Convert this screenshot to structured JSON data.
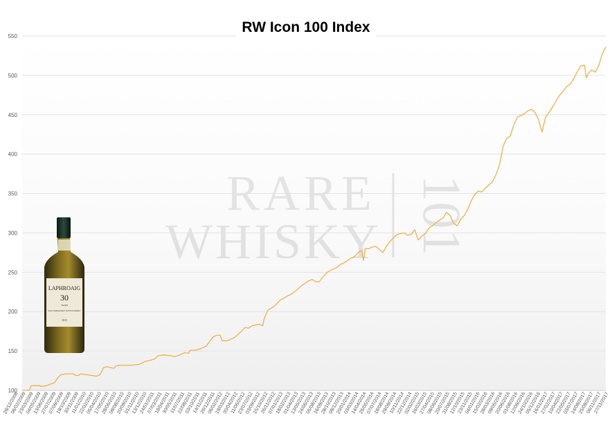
{
  "chart_data": {
    "type": "line",
    "title": "RW Icon 100 Index",
    "xlabel": "",
    "ylabel": "",
    "ylim": [
      100,
      550
    ],
    "yticks": [
      100,
      150,
      200,
      250,
      300,
      350,
      400,
      450,
      500,
      550
    ],
    "grid": true,
    "series_color": "#f0b04a",
    "x_tick_labels": [
      "29/12/2008",
      "06/02/2009",
      "23/03/2009",
      "04/05/2009",
      "13/06/2009",
      "27/07/2009",
      "07/09/2009",
      "19/10/2009",
      "30/11/2009",
      "11/01/2010",
      "22/02/2010",
      "05/04/2010",
      "17/05/2010",
      "28/06/2010",
      "09/08/2010",
      "20/09/2010",
      "01/11/2010",
      "13/12/2010",
      "24/01/2011",
      "07/03/2011",
      "18/04/2011",
      "30/05/2011",
      "11/07/2011",
      "22/08/2011",
      "03/10/2011",
      "14/11/2011",
      "26/12/2011",
      "06/02/2012",
      "19/03/2012",
      "30/04/2012",
      "11/06/2012",
      "23/07/2012",
      "03/09/2012",
      "15/10/2012",
      "26/11/2012",
      "07/01/2013",
      "18/02/2013",
      "01/04/2013",
      "13/05/2013",
      "24/06/2013",
      "05/08/2013",
      "16/09/2013",
      "28/10/2013",
      "09/12/2013",
      "20/01/2014",
      "03/03/2014",
      "14/04/2014",
      "26/05/2014",
      "07/07/2014",
      "18/08/2014",
      "29/09/2014",
      "10/11/2014",
      "22/12/2014",
      "02/02/2015",
      "16/03/2015",
      "27/04/2015",
      "08/06/2015",
      "20/07/2015",
      "31/08/2015",
      "12/10/2015",
      "23/11/2015",
      "04/01/2016",
      "15/02/2016",
      "28/03/2016",
      "09/05/2016",
      "20/06/2016",
      "01/08/2016",
      "12/09/2016",
      "24/10/2016",
      "05/12/2016",
      "16/01/2017",
      "27/02/2017",
      "10/04/2017",
      "22/05/2017",
      "03/07/2017",
      "14/08/2017",
      "25/09/2017",
      "06/11/2017",
      "27/11/2017"
    ],
    "series": [
      {
        "values": [
          [
            0,
            100
          ],
          [
            2,
            100
          ],
          [
            2.6,
            106
          ],
          [
            5,
            106
          ],
          [
            5.4,
            105
          ],
          [
            7,
            106
          ],
          [
            8,
            108
          ],
          [
            9.2,
            110
          ],
          [
            10.2,
            117
          ],
          [
            11,
            120
          ],
          [
            12.5,
            121
          ],
          [
            14.5,
            121
          ],
          [
            15,
            119
          ],
          [
            16,
            119
          ],
          [
            16.5,
            121
          ],
          [
            18,
            120
          ],
          [
            19.5,
            119
          ],
          [
            21,
            118
          ],
          [
            22,
            120
          ],
          [
            22.5,
            124
          ],
          [
            23,
            129
          ],
          [
            24,
            130
          ],
          [
            25,
            129
          ],
          [
            26,
            128
          ],
          [
            26.5,
            131
          ],
          [
            27.5,
            132
          ],
          [
            29,
            132
          ],
          [
            31,
            132
          ],
          [
            33,
            133
          ],
          [
            34,
            135
          ],
          [
            35,
            137
          ],
          [
            36,
            138
          ],
          [
            37.5,
            140
          ],
          [
            38.5,
            144
          ],
          [
            40,
            145
          ],
          [
            42,
            144
          ],
          [
            43,
            143
          ],
          [
            44,
            144
          ],
          [
            45,
            146
          ],
          [
            46,
            148
          ],
          [
            47,
            147
          ],
          [
            47.5,
            151
          ],
          [
            49,
            151
          ],
          [
            50.5,
            153
          ],
          [
            52,
            156
          ],
          [
            53,
            162
          ],
          [
            54,
            168
          ],
          [
            55,
            170
          ],
          [
            56,
            170
          ],
          [
            56.5,
            163
          ],
          [
            58,
            163
          ],
          [
            59,
            165
          ],
          [
            60,
            167
          ],
          [
            61,
            171
          ],
          [
            62,
            175
          ],
          [
            63,
            180
          ],
          [
            64,
            179
          ],
          [
            65,
            182
          ],
          [
            66,
            183
          ],
          [
            67,
            184
          ],
          [
            68,
            182
          ],
          [
            68.5,
            192
          ],
          [
            69.5,
            202
          ],
          [
            71,
            206
          ],
          [
            72,
            210
          ],
          [
            73,
            215
          ],
          [
            74,
            217
          ],
          [
            75,
            220
          ],
          [
            76,
            222
          ],
          [
            77,
            225
          ],
          [
            78,
            229
          ],
          [
            79,
            233
          ],
          [
            80,
            236
          ],
          [
            81,
            239
          ],
          [
            82,
            241
          ],
          [
            83,
            238
          ],
          [
            84,
            238
          ],
          [
            85,
            244
          ],
          [
            86,
            249
          ],
          [
            87,
            252
          ],
          [
            88,
            254
          ],
          [
            89,
            256
          ],
          [
            90,
            260
          ],
          [
            91,
            262
          ],
          [
            92,
            265
          ],
          [
            93,
            268
          ],
          [
            94,
            270
          ],
          [
            95,
            275
          ],
          [
            96,
            278
          ],
          [
            96.5,
            265
          ],
          [
            97,
            280
          ],
          [
            98,
            280
          ],
          [
            99,
            282
          ],
          [
            100,
            283
          ],
          [
            101,
            279
          ],
          [
            102,
            275
          ],
          [
            103,
            283
          ],
          [
            104,
            289
          ],
          [
            105,
            294
          ],
          [
            106,
            298
          ],
          [
            107,
            299
          ],
          [
            108,
            300
          ],
          [
            109,
            297
          ],
          [
            110,
            298
          ],
          [
            111,
            304
          ],
          [
            112,
            291
          ],
          [
            113,
            296
          ],
          [
            114,
            299
          ],
          [
            115,
            306
          ],
          [
            116,
            309
          ],
          [
            117,
            313
          ],
          [
            118,
            316
          ],
          [
            119,
            319
          ],
          [
            120,
            326
          ],
          [
            121,
            322
          ],
          [
            122,
            312
          ],
          [
            123,
            309
          ],
          [
            124,
            317
          ],
          [
            125,
            322
          ],
          [
            126,
            330
          ],
          [
            127,
            341
          ],
          [
            128,
            349
          ],
          [
            129,
            353
          ],
          [
            130,
            352
          ],
          [
            131,
            357
          ],
          [
            132,
            361
          ],
          [
            133,
            365
          ],
          [
            134,
            374
          ],
          [
            135,
            387
          ],
          [
            136,
            410
          ],
          [
            137,
            420
          ],
          [
            138,
            423
          ],
          [
            139,
            437
          ],
          [
            140,
            447
          ],
          [
            141,
            449
          ],
          [
            142,
            451
          ],
          [
            143,
            455
          ],
          [
            144,
            457
          ],
          [
            145,
            453
          ],
          [
            146,
            444
          ],
          [
            147,
            428
          ],
          [
            148,
            447
          ],
          [
            149,
            453
          ],
          [
            150,
            460
          ],
          [
            151,
            468
          ],
          [
            152,
            475
          ],
          [
            153,
            480
          ],
          [
            154,
            486
          ],
          [
            155,
            489
          ],
          [
            156,
            496
          ],
          [
            157,
            505
          ],
          [
            158,
            512
          ],
          [
            159,
            513
          ],
          [
            159.5,
            497
          ],
          [
            160,
            502
          ],
          [
            161,
            507
          ],
          [
            162,
            504
          ],
          [
            163,
            512
          ],
          [
            164,
            527
          ],
          [
            165,
            536
          ]
        ]
      }
    ],
    "x_max": 165
  },
  "watermark": {
    "line1": "RARE",
    "line2": "WHISKY",
    "number": "101"
  },
  "bottle": {
    "brand": "LAPHROAIG",
    "age": "30",
    "years_label": "YEARS",
    "small_text": "ISLAY SINGLE MALT SCOTCH WHISKY",
    "est": "1815"
  }
}
